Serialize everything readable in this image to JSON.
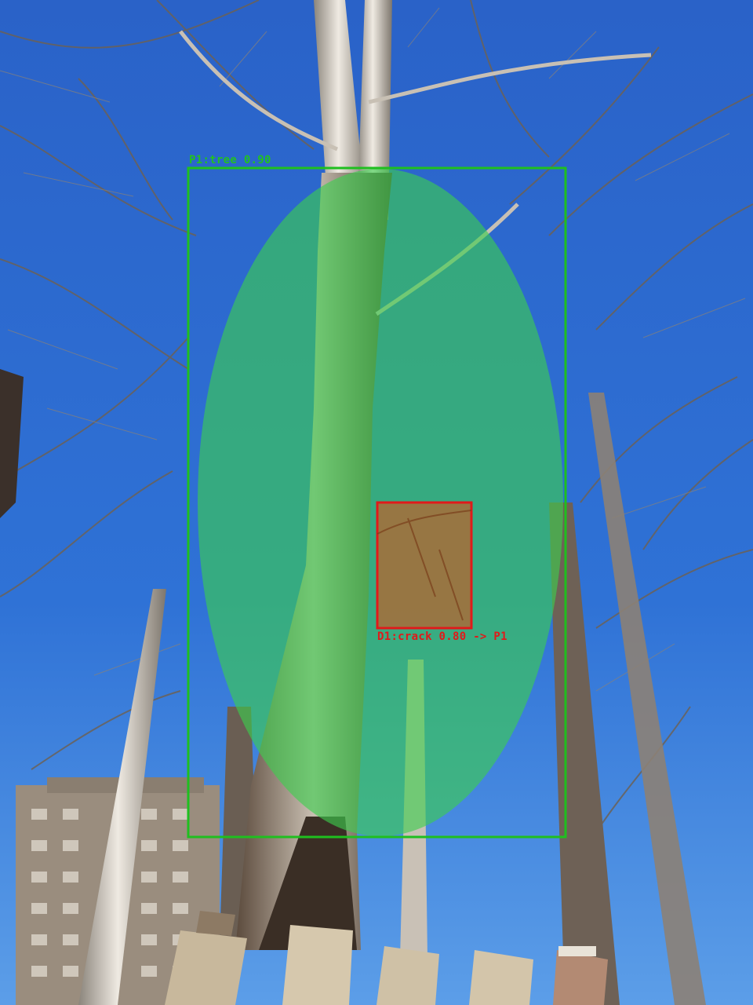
{
  "scene": {
    "description_icon": "photo-icon",
    "sky_color": "#2f6fd0",
    "sky_light_color": "#6aa6ea"
  },
  "annotations": {
    "primary": {
      "id": "P1",
      "label": "P1:tree 0.90",
      "box_color": "#1fbf1f",
      "mask_color": "#3ccf4e"
    },
    "defect": {
      "id": "D1",
      "label": "D1:crack 0.80 -> P1",
      "box_color": "#e01a1a",
      "fill_color": "#c0602a"
    }
  }
}
